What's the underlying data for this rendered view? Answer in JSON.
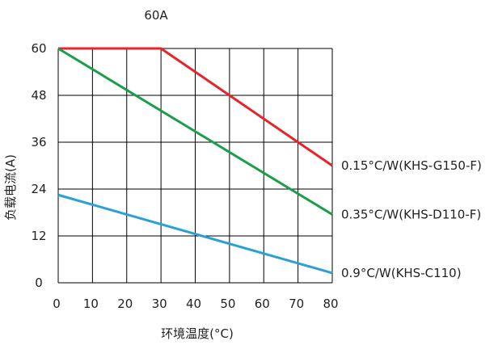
{
  "chart_data": {
    "type": "line",
    "title": "60A",
    "xlabel": "环境温度(°C)",
    "ylabel": "负载电流(A)",
    "xlim": [
      0,
      80
    ],
    "ylim": [
      0,
      60
    ],
    "x_ticks": [
      "0",
      "10",
      "20",
      "30",
      "40",
      "50",
      "60",
      "70",
      "80"
    ],
    "y_ticks": [
      "0",
      "12",
      "24",
      "36",
      "48",
      "60"
    ],
    "grid": true,
    "series": [
      {
        "name": "0.15°C/W(KHS-G150-F)",
        "color": "#e8232a",
        "points": [
          [
            0,
            60
          ],
          [
            30,
            60
          ],
          [
            80,
            30
          ]
        ]
      },
      {
        "name": "0.35°C/W(KHS-D110-F)",
        "color": "#1a9e4a",
        "points": [
          [
            0,
            60
          ],
          [
            80,
            17.5
          ]
        ]
      },
      {
        "name": "0.9°C/W(KHS-C110)",
        "color": "#2aa0d8",
        "points": [
          [
            0,
            22.5
          ],
          [
            80,
            2.5
          ]
        ]
      }
    ]
  }
}
